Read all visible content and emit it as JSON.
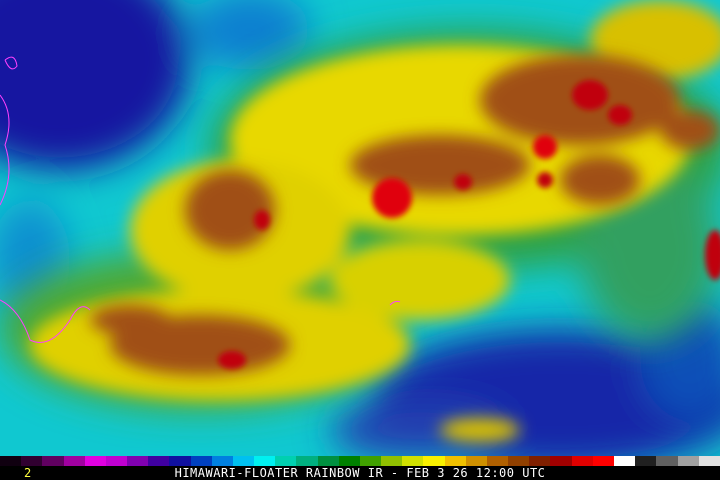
{
  "image": {
    "channel_label": "2",
    "title": "HIMAWARI-FLOATER RAINBOW IR - FEB 3 26 12:00 UTC",
    "content": "rainbow-enhanced infrared satellite image of tropical cloud system",
    "coastline_color": "#ff40ff"
  },
  "color_scale": [
    "#100010",
    "#300030",
    "#600060",
    "#a000a0",
    "#e000e0",
    "#c000d0",
    "#8000b0",
    "#4000a0",
    "#1010a0",
    "#0040c0",
    "#0080e0",
    "#00c0f0",
    "#00f0f0",
    "#00d0b0",
    "#00b080",
    "#009040",
    "#008000",
    "#40a000",
    "#90c000",
    "#d0e000",
    "#f8f000",
    "#f0c000",
    "#d09000",
    "#b06000",
    "#904000",
    "#802000",
    "#a00000",
    "#e00000",
    "#ff0000",
    "#ffffff",
    "#202020",
    "#606060",
    "#a0a0a0",
    "#e0e0e0"
  ]
}
